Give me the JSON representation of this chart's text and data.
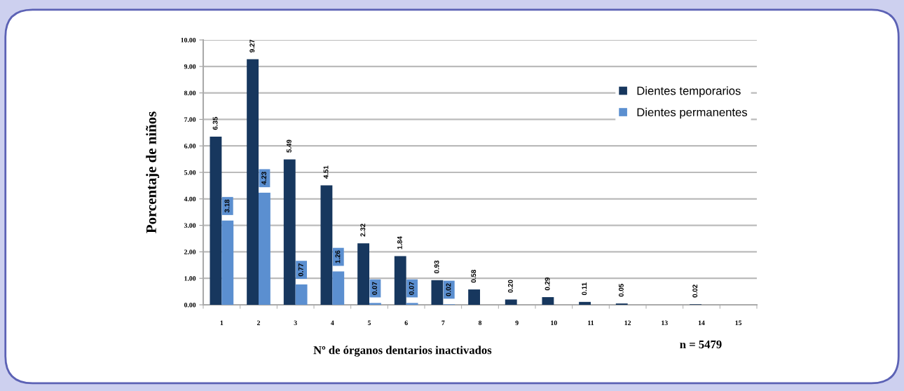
{
  "chart_data": {
    "type": "bar",
    "xlabel": "Nº de órganos dentarios inactivados",
    "ylabel": "Porcentaje de niños",
    "annotations": [
      "n = 5479"
    ],
    "categories": [
      "1",
      "2",
      "3",
      "4",
      "5",
      "6",
      "7",
      "8",
      "9",
      "10",
      "11",
      "12",
      "13",
      "14",
      "15"
    ],
    "ylim": [
      0,
      10
    ],
    "yticks": [
      {
        "value": 0,
        "label": "0.00"
      },
      {
        "value": 1,
        "label": "1.00"
      },
      {
        "value": 2,
        "label": "2.00"
      },
      {
        "value": 3,
        "label": "3.00"
      },
      {
        "value": 4,
        "label": "4.00"
      },
      {
        "value": 5,
        "label": "5.00"
      },
      {
        "value": 6,
        "label": "6.00"
      },
      {
        "value": 7,
        "label": "7.00"
      },
      {
        "value": 8,
        "label": "8.00"
      },
      {
        "value": 9,
        "label": "9.00"
      },
      {
        "value": 10,
        "label": "10.00"
      }
    ],
    "grid": "y",
    "legend": "top right",
    "series": [
      {
        "name": "Dientes temporarios",
        "color": "#17375e",
        "values": [
          6.35,
          9.27,
          5.49,
          4.51,
          2.32,
          1.84,
          0.93,
          0.58,
          0.2,
          0.29,
          0.11,
          0.05,
          null,
          0.02,
          null
        ],
        "value_labels": [
          "6.35",
          "9.27",
          "5.49",
          "4.51",
          "2.32",
          "1.84",
          "0.93",
          "0.58",
          "0.20",
          "0.29",
          "0.11",
          "0.05",
          null,
          "0.02",
          null
        ]
      },
      {
        "name": "Dientes permanentes",
        "color": "#5b8fd0",
        "values": [
          3.18,
          4.23,
          0.77,
          1.26,
          0.07,
          0.07,
          0.02,
          null,
          null,
          null,
          null,
          null,
          null,
          null,
          null
        ],
        "value_labels": [
          "3.18",
          "4.23",
          "0.77",
          "1.26",
          "0.07",
          "0.07",
          "0.02",
          null,
          null,
          null,
          null,
          null,
          null,
          null,
          null
        ]
      }
    ]
  }
}
